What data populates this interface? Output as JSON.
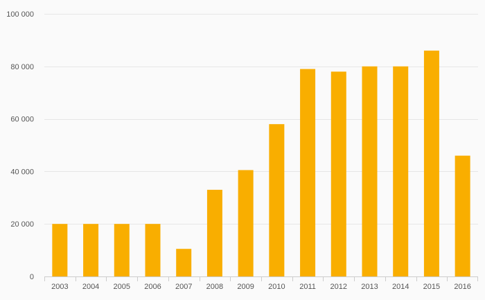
{
  "chart_data": {
    "type": "bar",
    "title": "",
    "xlabel": "",
    "ylabel": "",
    "categories": [
      "2003",
      "2004",
      "2005",
      "2006",
      "2007",
      "2008",
      "2009",
      "2010",
      "2011",
      "2012",
      "2013",
      "2014",
      "2015",
      "2016"
    ],
    "values": [
      20000,
      20000,
      20000,
      20000,
      10500,
      33000,
      40500,
      58000,
      79000,
      78000,
      80000,
      80000,
      86000,
      46000
    ],
    "ylim": [
      0,
      100000
    ],
    "yticks": [
      0,
      20000,
      40000,
      60000,
      80000,
      100000
    ],
    "ytick_labels": [
      "0",
      "20 000",
      "40 000",
      "60 000",
      "80 000",
      "100 000"
    ],
    "grid": true,
    "legend": "none",
    "colors": {
      "bar": "#f9ae00",
      "grid": "#e6e6e6",
      "text": "#555555",
      "background": "#fafafa"
    }
  }
}
